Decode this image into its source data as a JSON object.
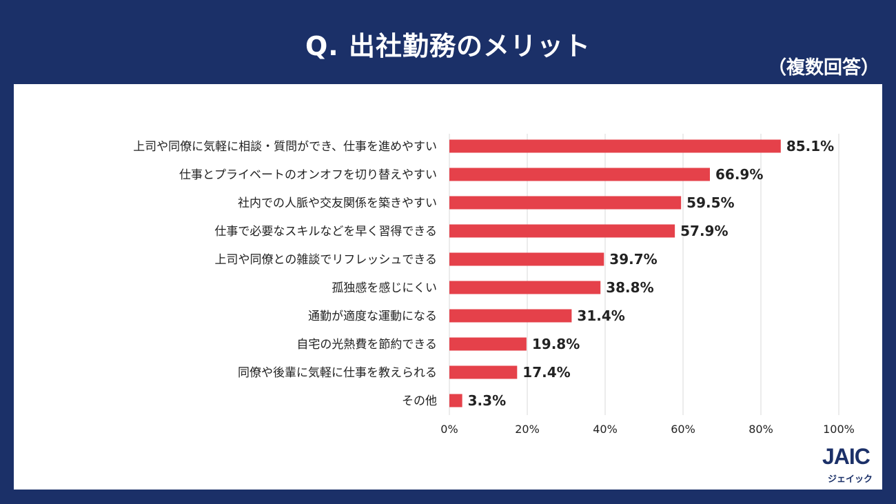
{
  "header": {
    "title": "Q. 出社勤務のメリット",
    "subtitle": "（複数回答）"
  },
  "logo": {
    "mark": "JAIC",
    "kana": "ジェイック"
  },
  "colors": {
    "background": "#1b3068",
    "bar": "#e5414a",
    "grid": "#d9d9d9",
    "text": "#222222"
  },
  "chart_data": {
    "type": "bar",
    "orientation": "horizontal",
    "categories": [
      "上司や同僚に気軽に相談・質問ができ、仕事を進めやすい",
      "仕事とプライベートのオンオフを切り替えやすい",
      "社内での人脈や交友関係を築きやすい",
      "仕事で必要なスキルなどを早く習得できる",
      "上司や同僚との雑談でリフレッシュできる",
      "孤独感を感じにくい",
      "通勤が適度な運動になる",
      "自宅の光熱費を節約できる",
      "同僚や後輩に気軽に仕事を教えられる",
      "その他"
    ],
    "values": [
      85.1,
      66.9,
      59.5,
      57.9,
      39.7,
      38.8,
      31.4,
      19.8,
      17.4,
      3.3
    ],
    "value_labels": [
      "85.1%",
      "66.9%",
      "59.5%",
      "57.9%",
      "39.7%",
      "38.8%",
      "31.4%",
      "19.8%",
      "17.4%",
      "3.3%"
    ],
    "xlim": [
      0,
      100
    ],
    "xticks": [
      0,
      20,
      40,
      60,
      80,
      100
    ],
    "xtick_labels": [
      "0%",
      "20%",
      "40%",
      "60%",
      "80%",
      "100%"
    ],
    "grid": true
  }
}
